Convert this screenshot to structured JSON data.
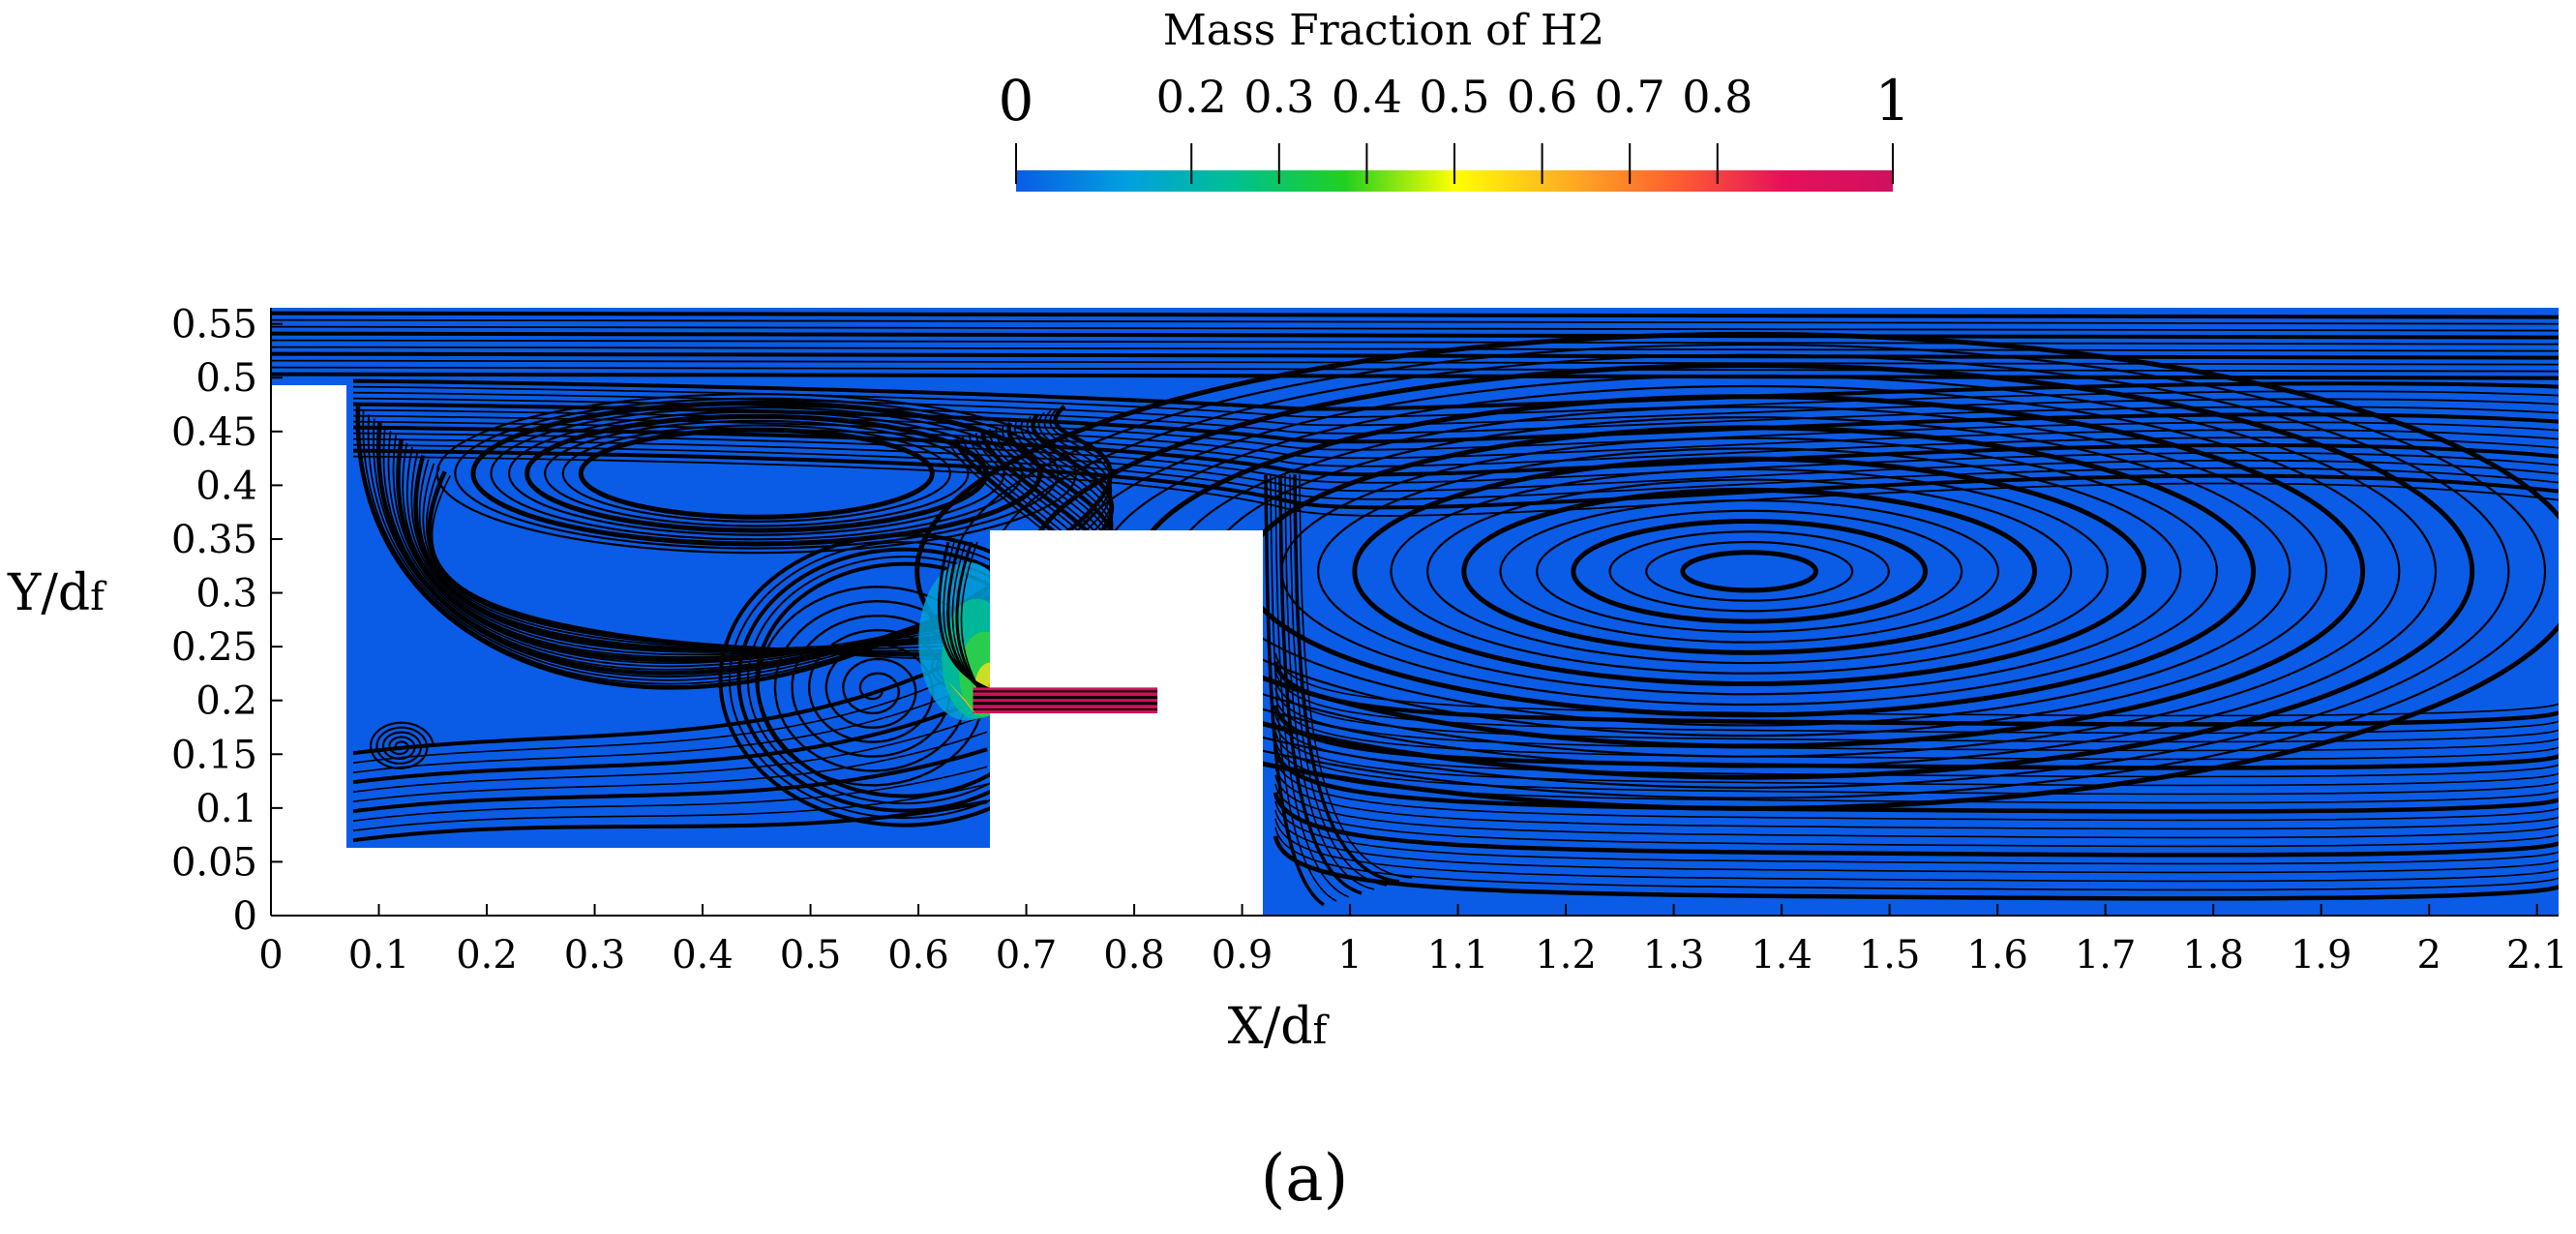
{
  "chart_data": {
    "type": "heatmap",
    "subtype": "contour-with-streamlines",
    "title": "",
    "panel_label": "(a)",
    "xlabel_main": "X/d",
    "xlabel_sub": "f",
    "ylabel_main": "Y/d",
    "ylabel_sub": "f",
    "xlim": [
      0,
      2.12
    ],
    "ylim": [
      0,
      0.565
    ],
    "x_ticks": [
      0,
      0.1,
      0.2,
      0.3,
      0.4,
      0.5,
      0.6,
      0.7,
      0.8,
      0.9,
      1,
      1.1,
      1.2,
      1.3,
      1.4,
      1.5,
      1.6,
      1.7,
      1.8,
      1.9,
      2,
      2.1
    ],
    "x_tick_labels": [
      "0",
      "0.1",
      "0.2",
      "0.3",
      "0.4",
      "0.5",
      "0.6",
      "0.7",
      "0.8",
      "0.9",
      "1",
      "1.1",
      "1.2",
      "1.3",
      "1.4",
      "1.5",
      "1.6",
      "1.7",
      "1.8",
      "1.9",
      "2",
      "2.1"
    ],
    "y_ticks": [
      0,
      0.05,
      0.1,
      0.15,
      0.2,
      0.25,
      0.3,
      0.35,
      0.4,
      0.45,
      0.5,
      0.55
    ],
    "y_tick_labels": [
      "0",
      "0.05",
      "0.1",
      "0.15",
      "0.2",
      "0.25",
      "0.3",
      "0.35",
      "0.4",
      "0.45",
      "0.5",
      "0.55"
    ],
    "colorbar": {
      "title": "Mass Fraction of H2",
      "range": [
        0,
        1
      ],
      "ticks": [
        0,
        0.2,
        0.3,
        0.4,
        0.5,
        0.6,
        0.7,
        0.8,
        1
      ],
      "tick_labels": [
        "0",
        "0.2",
        "0.3",
        "0.4",
        "0.5",
        "0.6",
        "0.7",
        "0.8",
        "1"
      ],
      "colors": [
        "#0a5ce6",
        "#00a0e0",
        "#00c090",
        "#20d020",
        "#ffff00",
        "#ffb020",
        "#ff6030",
        "#e8105a",
        "#d01060"
      ]
    },
    "domain": {
      "background_value": 0,
      "background_color": "#0a5ce6",
      "fluid_regions": [
        {
          "name": "upper-channel",
          "x": [
            0,
            2.12
          ],
          "y": [
            0.5,
            0.565
          ]
        },
        {
          "name": "left-cavity",
          "x": [
            0.07,
            0.665
          ],
          "y": [
            0.065,
            0.5
          ]
        },
        {
          "name": "gap-over-block",
          "x": [
            0.665,
            0.92
          ],
          "y": [
            0.36,
            0.5
          ]
        },
        {
          "name": "right-downstream-region",
          "x": [
            0.92,
            2.12
          ],
          "y": [
            0,
            0.5
          ]
        }
      ],
      "solid_block": {
        "x": [
          0.665,
          0.92
        ],
        "y": [
          0,
          0.36
        ]
      },
      "h2_jet": {
        "x": [
          0.665,
          0.8
        ],
        "y": [
          0.188,
          0.212
        ],
        "value": 1
      },
      "mixing_zone": {
        "x": [
          0.6,
          0.665
        ],
        "y": [
          0.19,
          0.34
        ],
        "value_range": [
          0.2,
          0.7
        ]
      }
    },
    "vortices": [
      {
        "name": "large-downstream-vortex",
        "center": [
          1.37,
          0.32
        ],
        "value": 0
      },
      {
        "name": "upper-cavity-vortex",
        "center": [
          0.45,
          0.42
        ],
        "value": 0
      },
      {
        "name": "lower-cavity-vortex",
        "center": [
          0.56,
          0.21
        ],
        "value": 0
      },
      {
        "name": "corner-vortex",
        "center": [
          0.12,
          0.157
        ],
        "value": 0
      },
      {
        "name": "small-jet-vortex",
        "center": [
          0.63,
          0.23
        ],
        "value": 0
      }
    ]
  }
}
